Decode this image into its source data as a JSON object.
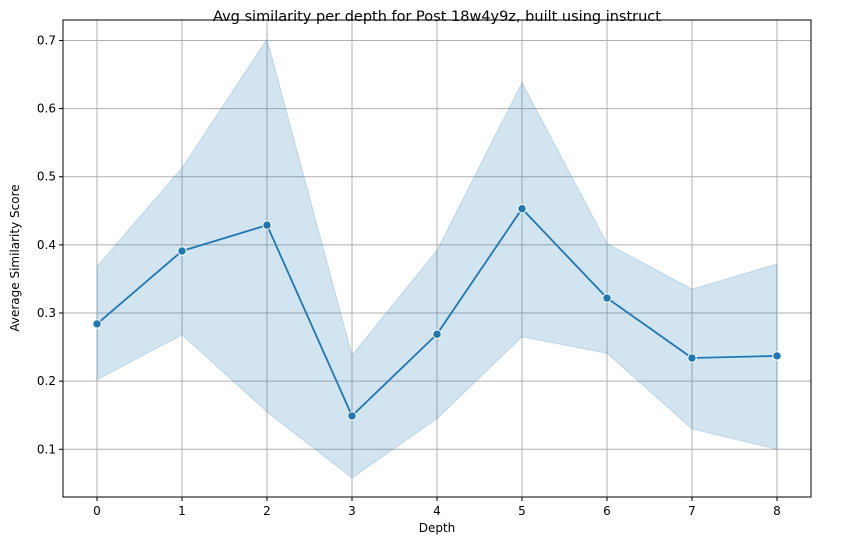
{
  "chart_data": {
    "type": "line",
    "title": "Avg similarity per depth for Post 18w4y9z, built using instruct",
    "xlabel": "Depth",
    "ylabel": "Average Similarity Score",
    "x": [
      0,
      1,
      2,
      3,
      4,
      5,
      6,
      7,
      8
    ],
    "x_ticks": [
      "0",
      "1",
      "2",
      "3",
      "4",
      "5",
      "6",
      "7",
      "8"
    ],
    "y_ticks": [
      "0.1",
      "0.2",
      "0.3",
      "0.4",
      "0.5",
      "0.6",
      "0.7"
    ],
    "xlim": [
      -0.4,
      8.4
    ],
    "ylim": [
      0.03,
      0.73
    ],
    "grid": true,
    "series": [
      {
        "values": [
          0.284,
          0.391,
          0.429,
          0.149,
          0.269,
          0.453,
          0.322,
          0.234,
          0.237
        ],
        "ci_upper": [
          0.368,
          0.513,
          0.702,
          0.238,
          0.392,
          0.638,
          0.402,
          0.335,
          0.372
        ],
        "ci_lower": [
          0.202,
          0.268,
          0.155,
          0.058,
          0.145,
          0.265,
          0.241,
          0.13,
          0.1
        ],
        "color": "#1f77b4",
        "band_color": "#a6c8e0"
      }
    ]
  }
}
